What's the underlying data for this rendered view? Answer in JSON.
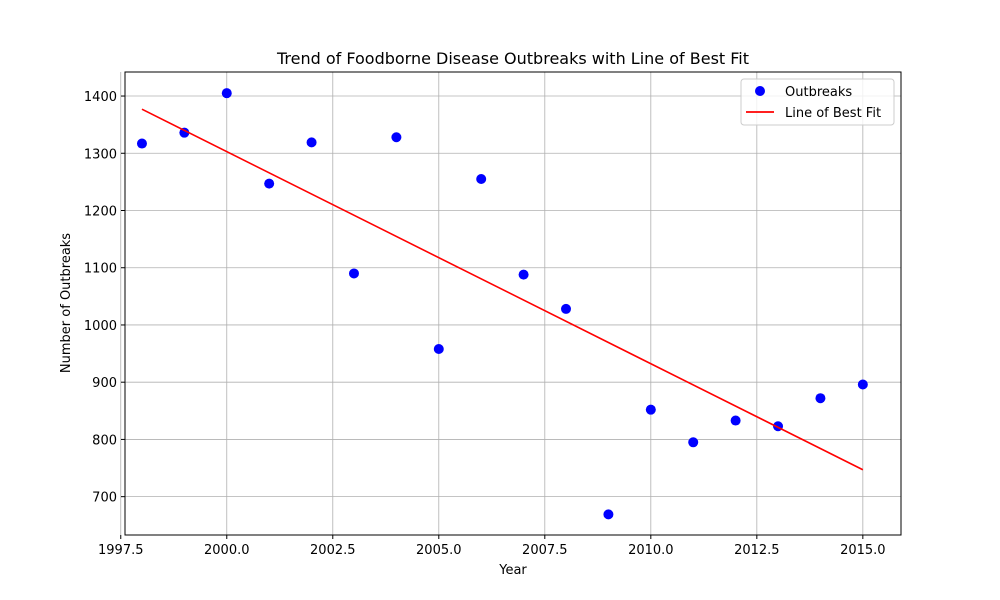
{
  "chart_data": {
    "type": "scatter",
    "title": "Trend of Foodborne Disease Outbreaks with Line of Best Fit",
    "xlabel": "Year",
    "ylabel": "Number of Outbreaks",
    "xlim": [
      1997.6,
      2015.9
    ],
    "ylim": [
      633,
      1442
    ],
    "xticks": [
      1997.5,
      2000.0,
      2002.5,
      2005.0,
      2007.5,
      2010.0,
      2012.5,
      2015.0
    ],
    "xtick_labels": [
      "1997.5",
      "2000.0",
      "2002.5",
      "2005.0",
      "2007.5",
      "2010.0",
      "2012.5",
      "2015.0"
    ],
    "yticks": [
      700,
      800,
      900,
      1000,
      1100,
      1200,
      1300,
      1400
    ],
    "ytick_labels": [
      "700",
      "800",
      "900",
      "1000",
      "1100",
      "1200",
      "1300",
      "1400"
    ],
    "grid": true,
    "legend": "top-right",
    "series": [
      {
        "name": "Outbreaks",
        "kind": "scatter",
        "color": "#0000ff",
        "x": [
          1998,
          1999,
          2000,
          2001,
          2002,
          2003,
          2004,
          2005,
          2006,
          2007,
          2008,
          2009,
          2010,
          2011,
          2012,
          2013,
          2014,
          2015
        ],
        "y": [
          1317,
          1336,
          1405,
          1247,
          1319,
          1090,
          1328,
          958,
          1255,
          1088,
          1028,
          669,
          852,
          795,
          833,
          823,
          872,
          896
        ]
      },
      {
        "name": "Line of Best Fit",
        "kind": "line",
        "color": "#ff0000",
        "x": [
          1998,
          2015
        ],
        "y": [
          1377,
          747
        ]
      }
    ]
  }
}
